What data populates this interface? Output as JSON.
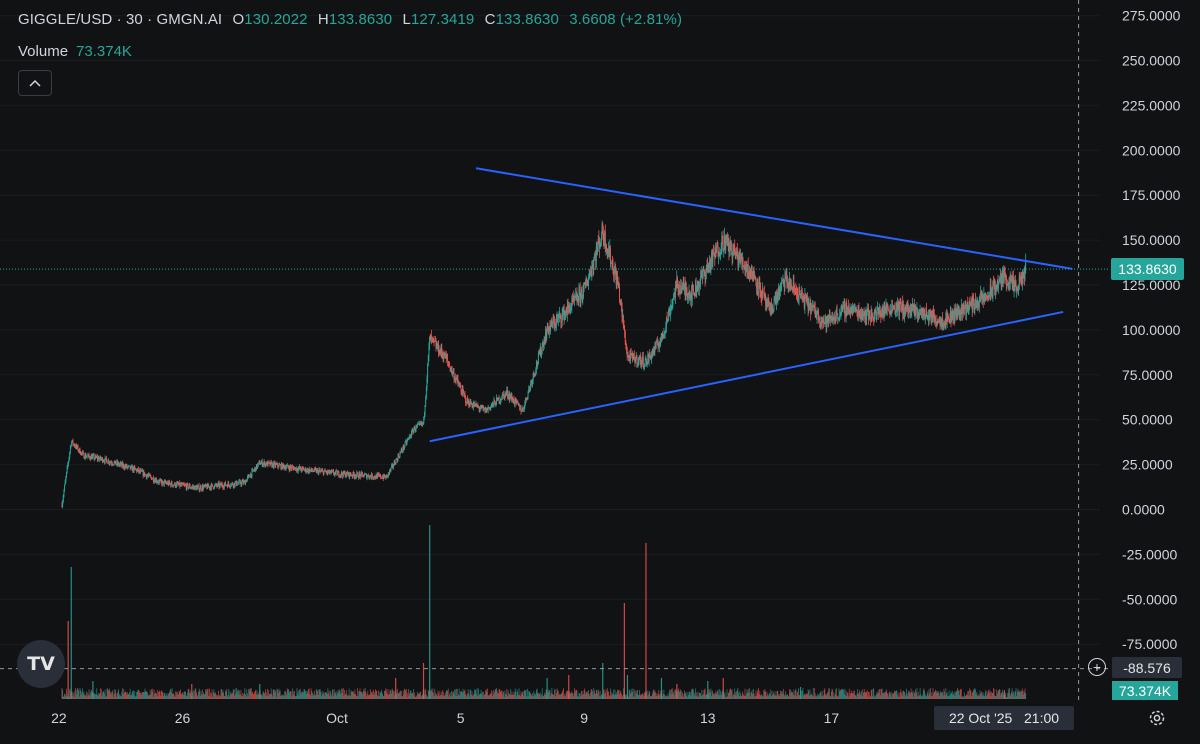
{
  "header": {
    "symbol": "GIGGLE/USD · 30 · GMGN.AI",
    "open_label": "O",
    "open": "130.2022",
    "high_label": "H",
    "high": "133.8630",
    "low_label": "L",
    "low": "127.3419",
    "close_label": "C",
    "close": "133.8630",
    "change": "3.6608 (+2.81%)"
  },
  "volume_row": {
    "label": "Volume",
    "value": "73.374K"
  },
  "logo_text": "TV",
  "colors": {
    "background": "#111214",
    "up": "#26a69a",
    "down": "#ef5350",
    "trendline": "#2962ff",
    "axis_text": "#d1d4dc"
  },
  "chart_data": {
    "type": "candlestick",
    "title": "",
    "xlabel": "",
    "ylabel": "",
    "ylim": [
      -100,
      285
    ],
    "y_ticks": [
      "275.0000",
      "250.0000",
      "225.0000",
      "200.0000",
      "175.0000",
      "150.0000",
      "125.0000",
      "100.0000",
      "75.0000",
      "50.0000",
      "25.0000",
      "0.0000",
      "-25.0000",
      "-50.0000",
      "-75.0000"
    ],
    "x_ticks": [
      "22",
      "26",
      "Oct",
      "5",
      "9",
      "13",
      "17"
    ],
    "x_tick_days": [
      -9,
      -5,
      0,
      4,
      8,
      12,
      16
    ],
    "x_range_days": [
      -9.1,
      24
    ],
    "x_units": "days relative to 1 Oct 2025",
    "price_trend": [
      {
        "day": -8.9,
        "price": 3
      },
      {
        "day": -8.6,
        "price": 38
      },
      {
        "day": -8.2,
        "price": 30
      },
      {
        "day": -7.6,
        "price": 28
      },
      {
        "day": -6.5,
        "price": 22
      },
      {
        "day": -5.7,
        "price": 15
      },
      {
        "day": -4.5,
        "price": 12
      },
      {
        "day": -3.0,
        "price": 15
      },
      {
        "day": -2.5,
        "price": 26
      },
      {
        "day": -1.0,
        "price": 22
      },
      {
        "day": 0.0,
        "price": 20
      },
      {
        "day": 1.6,
        "price": 18
      },
      {
        "day": 2.0,
        "price": 30
      },
      {
        "day": 2.5,
        "price": 45
      },
      {
        "day": 2.8,
        "price": 48
      },
      {
        "day": 3.0,
        "price": 95
      },
      {
        "day": 3.5,
        "price": 85
      },
      {
        "day": 4.2,
        "price": 60
      },
      {
        "day": 4.8,
        "price": 55
      },
      {
        "day": 5.5,
        "price": 65
      },
      {
        "day": 6.0,
        "price": 55
      },
      {
        "day": 6.8,
        "price": 100
      },
      {
        "day": 7.4,
        "price": 110
      },
      {
        "day": 8.0,
        "price": 122
      },
      {
        "day": 8.6,
        "price": 155
      },
      {
        "day": 9.1,
        "price": 125
      },
      {
        "day": 9.4,
        "price": 85
      },
      {
        "day": 10.0,
        "price": 82
      },
      {
        "day": 10.5,
        "price": 95
      },
      {
        "day": 11.0,
        "price": 125
      },
      {
        "day": 11.5,
        "price": 120
      },
      {
        "day": 12.0,
        "price": 135
      },
      {
        "day": 12.5,
        "price": 150
      },
      {
        "day": 13.0,
        "price": 140
      },
      {
        "day": 13.5,
        "price": 130
      },
      {
        "day": 14.0,
        "price": 110
      },
      {
        "day": 14.5,
        "price": 128
      },
      {
        "day": 15.2,
        "price": 115
      },
      {
        "day": 15.8,
        "price": 104
      },
      {
        "day": 16.5,
        "price": 112
      },
      {
        "day": 17.3,
        "price": 108
      },
      {
        "day": 18.0,
        "price": 113
      },
      {
        "day": 19.0,
        "price": 109
      },
      {
        "day": 19.6,
        "price": 105
      },
      {
        "day": 20.3,
        "price": 112
      },
      {
        "day": 21.0,
        "price": 118
      },
      {
        "day": 21.6,
        "price": 130
      },
      {
        "day": 22.0,
        "price": 122
      },
      {
        "day": 22.3,
        "price": 133.863
      }
    ],
    "trendlines": [
      {
        "from": {
          "day": 4.5,
          "price": 190
        },
        "to": {
          "day": 23.8,
          "price": 134
        }
      },
      {
        "from": {
          "day": 3.0,
          "price": 38
        },
        "to": {
          "day": 23.5,
          "price": 110
        }
      }
    ],
    "last_price": "133.8630",
    "last_price_value": 133.863,
    "crosshair_value": "-88.576",
    "crosshair_price": -88.576,
    "crosshair_day": 24,
    "volume_value": "73.374K",
    "volume_spikes": [
      {
        "day": -8.6,
        "volume": 2.2
      },
      {
        "day": -8.7,
        "volume": 1.3
      },
      {
        "day": -7.9,
        "volume": 0.3
      },
      {
        "day": -4.7,
        "volume": 0.25
      },
      {
        "day": -2.5,
        "volume": 0.25
      },
      {
        "day": 1.9,
        "volume": 0.35
      },
      {
        "day": 3.0,
        "volume": 2.9
      },
      {
        "day": 2.8,
        "volume": 0.6
      },
      {
        "day": 6.8,
        "volume": 0.35
      },
      {
        "day": 7.5,
        "volume": 0.4
      },
      {
        "day": 8.6,
        "volume": 0.6
      },
      {
        "day": 9.3,
        "volume": 1.6
      },
      {
        "day": 9.4,
        "volume": 0.4
      },
      {
        "day": 10.0,
        "volume": 2.6
      },
      {
        "day": 10.5,
        "volume": 0.35
      },
      {
        "day": 11.0,
        "volume": 0.25
      },
      {
        "day": 12.0,
        "volume": 0.3
      },
      {
        "day": 12.5,
        "volume": 0.35
      },
      {
        "day": 15.0,
        "volume": 0.2
      },
      {
        "day": 21.6,
        "volume": 0.15
      }
    ],
    "crosshair_date": "22 Oct '25",
    "crosshair_time": "21:00"
  }
}
